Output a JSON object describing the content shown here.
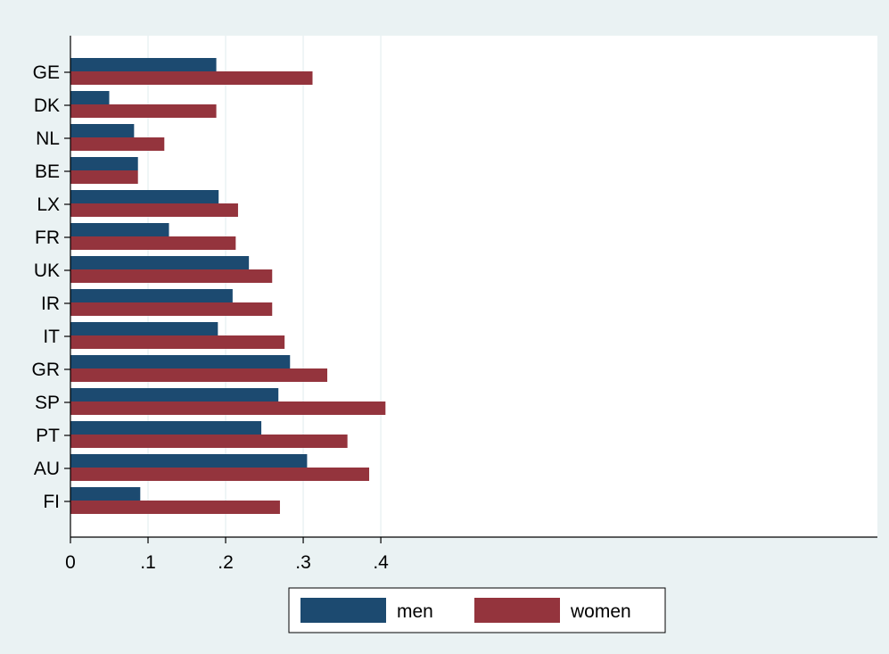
{
  "chart_data": {
    "type": "bar",
    "orientation": "horizontal",
    "categories": [
      "GE",
      "DK",
      "NL",
      "BE",
      "LX",
      "FR",
      "UK",
      "IR",
      "IT",
      "GR",
      "SP",
      "PT",
      "AU",
      "FI"
    ],
    "series": [
      {
        "name": "men",
        "color": "#1c4a70",
        "values": [
          0.188,
          0.05,
          0.082,
          0.087,
          0.191,
          0.127,
          0.23,
          0.209,
          0.19,
          0.283,
          0.268,
          0.246,
          0.305,
          0.09
        ]
      },
      {
        "name": "women",
        "color": "#94343d",
        "values": [
          0.312,
          0.188,
          0.121,
          0.087,
          0.216,
          0.213,
          0.26,
          0.26,
          0.276,
          0.331,
          0.406,
          0.357,
          0.385,
          0.27
        ]
      }
    ],
    "xlim": [
      0,
      1.04
    ],
    "xticks": [
      0,
      0.1,
      0.2,
      0.3,
      0.4
    ],
    "xtick_labels": [
      "0",
      ".1",
      ".2",
      ".3",
      ".4"
    ],
    "grid": "vertical",
    "legend": "bottom-center",
    "background_color": "#eaf2f3",
    "plot_color": "#ffffff",
    "grid_color": "#eaf2f3"
  }
}
